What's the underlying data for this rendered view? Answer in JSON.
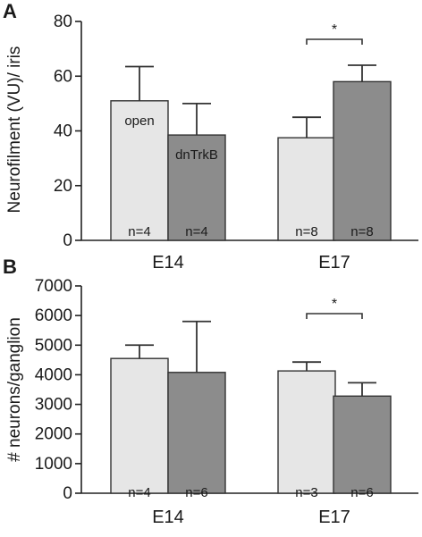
{
  "chart_data": [
    {
      "panel": "A",
      "type": "bar",
      "ylabel": "Neurofilment (VU)/ iris",
      "ylim": [
        0,
        80
      ],
      "yticks": [
        "0",
        "20",
        "40",
        "60",
        "80"
      ],
      "categories": [
        "E14",
        "E17"
      ],
      "series": [
        {
          "name": "open",
          "color": "#e6e6e6",
          "values": [
            51,
            37.5
          ],
          "error": [
            12.5,
            7.5
          ],
          "n": [
            "n=4",
            "n=8"
          ]
        },
        {
          "name": "dnTrkB",
          "color": "#8c8c8c",
          "values": [
            38.5,
            58
          ],
          "error": [
            11.5,
            6
          ],
          "n": [
            "n=4",
            "n=8"
          ]
        }
      ],
      "significance": [
        {
          "category": "E17",
          "label": "*"
        }
      ]
    },
    {
      "panel": "B",
      "type": "bar",
      "ylabel": "# neurons/ganglion",
      "ylim": [
        0,
        7000
      ],
      "yticks": [
        "0",
        "1000",
        "2000",
        "3000",
        "4000",
        "5000",
        "6000",
        "7000"
      ],
      "categories": [
        "E14",
        "E17"
      ],
      "series": [
        {
          "name": "open",
          "color": "#e6e6e6",
          "values": [
            4550,
            4130
          ],
          "error": [
            450,
            300
          ],
          "n": [
            "n=4",
            "n=3"
          ]
        },
        {
          "name": "dnTrkB",
          "color": "#8c8c8c",
          "values": [
            4080,
            3280
          ],
          "error": [
            1720,
            450
          ],
          "n": [
            "n=6",
            "n=6"
          ]
        }
      ],
      "significance": [
        {
          "category": "E17",
          "label": "*"
        }
      ]
    }
  ]
}
